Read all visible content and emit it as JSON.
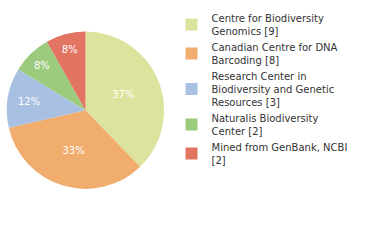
{
  "chart_data": {
    "type": "pie",
    "categories": [
      "Centre for Biodiversity Genomics [9]",
      "Canadian Centre for DNA Barcoding [8]",
      "Research Center in Biodiversity and Genetic Resources [3]",
      "Naturalis Biodiversity Center [2]",
      "Mined from GenBank, NCBI [2]"
    ],
    "values": [
      37,
      33,
      12,
      8,
      8
    ],
    "value_labels": [
      "37%",
      "33%",
      "12%",
      "8%",
      "8%"
    ],
    "colors": [
      "#dce39c",
      "#f0ad6e",
      "#a8c0e2",
      "#9dcb7e",
      "#e27462"
    ],
    "data_labels": true,
    "legend": "upper right"
  }
}
